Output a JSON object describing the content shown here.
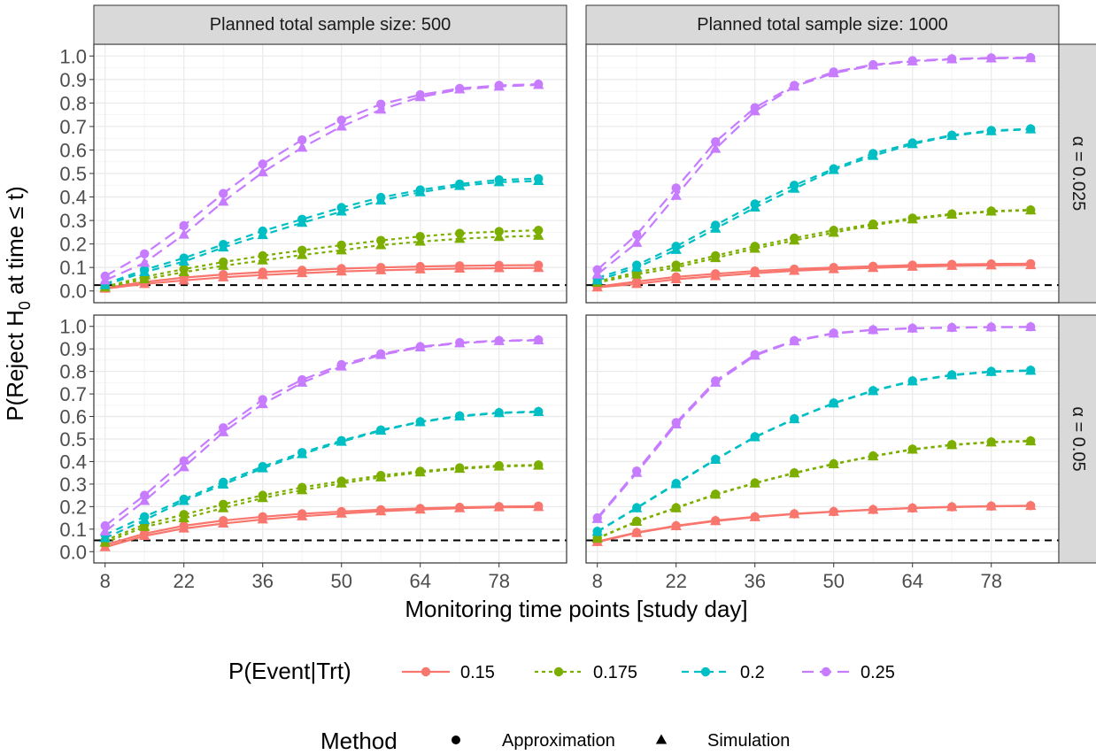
{
  "chart_data": {
    "type": "line",
    "xlabel": "Monitoring time points [study day]",
    "ylabel_prefix": "P(Reject H",
    "ylabel_sub": "0",
    "ylabel_suffix": " at time ≤ t)",
    "x_ticks": [
      8,
      22,
      36,
      50,
      64,
      78
    ],
    "y_ticks": [
      0.0,
      0.1,
      0.2,
      0.3,
      0.4,
      0.5,
      0.6,
      0.7,
      0.8,
      0.9,
      1.0
    ],
    "y_tick_labels": [
      "0.0",
      "0.1",
      "0.2",
      "0.3",
      "0.4",
      "0.5",
      "0.6",
      "0.7",
      "0.8",
      "0.9",
      "1.0"
    ],
    "xlim": [
      6,
      90
    ],
    "ylim": [
      -0.05,
      1.05
    ],
    "grid": true,
    "x": [
      8,
      15,
      22,
      29,
      36,
      43,
      50,
      57,
      64,
      71,
      78,
      85
    ],
    "col_facets": [
      "Planned total sample size: 500",
      "Planned total sample size: 1000"
    ],
    "row_facets": [
      "α = 0.025",
      "α = 0.05"
    ],
    "alpha_lines": [
      0.025,
      0.05
    ],
    "legend_event": {
      "title": "P(Event|Trt)",
      "entries": [
        {
          "label": "0.15",
          "color": "#F8766D",
          "dash": "solid"
        },
        {
          "label": "0.175",
          "color": "#7CAE00",
          "dash": "dotted"
        },
        {
          "label": "0.2",
          "color": "#00BFC4",
          "dash": "dashed"
        },
        {
          "label": "0.25",
          "color": "#C77CFF",
          "dash": "longdash"
        }
      ]
    },
    "legend_method": {
      "title": "Method",
      "entries": [
        {
          "label": "Approximation",
          "shape": "circle"
        },
        {
          "label": "Simulation",
          "shape": "triangle"
        }
      ]
    },
    "panels": [
      {
        "row": 0,
        "col": 0,
        "series": [
          {
            "event": "0.15",
            "method": "Approximation",
            "values": [
              0.013,
              0.038,
              0.057,
              0.07,
              0.08,
              0.088,
              0.095,
              0.1,
              0.104,
              0.107,
              0.109,
              0.11
            ]
          },
          {
            "event": "0.15",
            "method": "Simulation",
            "values": [
              0.01,
              0.03,
              0.045,
              0.058,
              0.068,
              0.076,
              0.083,
              0.088,
              0.092,
              0.095,
              0.097,
              0.098
            ]
          },
          {
            "event": "0.175",
            "method": "Approximation",
            "values": [
              0.018,
              0.06,
              0.093,
              0.123,
              0.15,
              0.173,
              0.195,
              0.215,
              0.232,
              0.245,
              0.253,
              0.258
            ]
          },
          {
            "event": "0.175",
            "method": "Simulation",
            "values": [
              0.015,
              0.05,
              0.08,
              0.107,
              0.13,
              0.153,
              0.173,
              0.195,
              0.21,
              0.222,
              0.23,
              0.235
            ]
          },
          {
            "event": "0.2",
            "method": "Approximation",
            "values": [
              0.03,
              0.09,
              0.14,
              0.198,
              0.255,
              0.305,
              0.355,
              0.398,
              0.43,
              0.455,
              0.473,
              0.478
            ]
          },
          {
            "event": "0.2",
            "method": "Simulation",
            "values": [
              0.025,
              0.08,
              0.125,
              0.185,
              0.238,
              0.29,
              0.338,
              0.385,
              0.42,
              0.447,
              0.463,
              0.468
            ]
          },
          {
            "event": "0.25",
            "method": "Approximation",
            "values": [
              0.063,
              0.158,
              0.278,
              0.415,
              0.54,
              0.643,
              0.727,
              0.795,
              0.835,
              0.862,
              0.875,
              0.88
            ]
          },
          {
            "event": "0.25",
            "method": "Simulation",
            "values": [
              0.045,
              0.12,
              0.24,
              0.38,
              0.505,
              0.61,
              0.7,
              0.772,
              0.825,
              0.858,
              0.87,
              0.877
            ]
          }
        ]
      },
      {
        "row": 0,
        "col": 1,
        "series": [
          {
            "event": "0.15",
            "method": "Approximation",
            "values": [
              0.018,
              0.04,
              0.06,
              0.073,
              0.085,
              0.093,
              0.1,
              0.105,
              0.11,
              0.113,
              0.115,
              0.116
            ]
          },
          {
            "event": "0.15",
            "method": "Simulation",
            "values": [
              0.015,
              0.03,
              0.05,
              0.063,
              0.076,
              0.086,
              0.093,
              0.098,
              0.103,
              0.107,
              0.109,
              0.11
            ]
          },
          {
            "event": "0.175",
            "method": "Approximation",
            "values": [
              0.04,
              0.08,
              0.11,
              0.15,
              0.19,
              0.225,
              0.258,
              0.285,
              0.31,
              0.328,
              0.34,
              0.345
            ]
          },
          {
            "event": "0.175",
            "method": "Simulation",
            "values": [
              0.035,
              0.07,
              0.1,
              0.14,
              0.18,
              0.215,
              0.248,
              0.28,
              0.305,
              0.325,
              0.338,
              0.343
            ]
          },
          {
            "event": "0.2",
            "method": "Approximation",
            "values": [
              0.055,
              0.11,
              0.19,
              0.28,
              0.37,
              0.45,
              0.52,
              0.585,
              0.63,
              0.663,
              0.683,
              0.69
            ]
          },
          {
            "event": "0.2",
            "method": "Simulation",
            "values": [
              0.045,
              0.1,
              0.175,
              0.265,
              0.355,
              0.435,
              0.515,
              0.575,
              0.625,
              0.66,
              0.68,
              0.688
            ]
          },
          {
            "event": "0.25",
            "method": "Approximation",
            "values": [
              0.09,
              0.24,
              0.438,
              0.635,
              0.78,
              0.875,
              0.932,
              0.963,
              0.98,
              0.988,
              0.992,
              0.993
            ]
          },
          {
            "event": "0.25",
            "method": "Simulation",
            "values": [
              0.07,
              0.205,
              0.405,
              0.605,
              0.765,
              0.87,
              0.927,
              0.96,
              0.977,
              0.986,
              0.99,
              0.991
            ]
          }
        ]
      },
      {
        "row": 1,
        "col": 0,
        "series": [
          {
            "event": "0.15",
            "method": "Approximation",
            "values": [
              0.03,
              0.08,
              0.115,
              0.138,
              0.155,
              0.168,
              0.178,
              0.186,
              0.192,
              0.197,
              0.2,
              0.202
            ]
          },
          {
            "event": "0.15",
            "method": "Simulation",
            "values": [
              0.02,
              0.07,
              0.103,
              0.125,
              0.143,
              0.157,
              0.169,
              0.179,
              0.187,
              0.193,
              0.197,
              0.198
            ]
          },
          {
            "event": "0.175",
            "method": "Approximation",
            "values": [
              0.05,
              0.12,
              0.165,
              0.21,
              0.25,
              0.285,
              0.313,
              0.338,
              0.357,
              0.372,
              0.382,
              0.385
            ]
          },
          {
            "event": "0.175",
            "method": "Simulation",
            "values": [
              0.04,
              0.11,
              0.148,
              0.193,
              0.238,
              0.273,
              0.303,
              0.33,
              0.352,
              0.368,
              0.378,
              0.382
            ]
          },
          {
            "event": "0.2",
            "method": "Approximation",
            "values": [
              0.075,
              0.155,
              0.233,
              0.308,
              0.378,
              0.44,
              0.493,
              0.54,
              0.577,
              0.603,
              0.617,
              0.622
            ]
          },
          {
            "event": "0.2",
            "method": "Simulation",
            "values": [
              0.06,
              0.14,
              0.225,
              0.298,
              0.37,
              0.433,
              0.488,
              0.537,
              0.575,
              0.6,
              0.615,
              0.62
            ]
          },
          {
            "event": "0.25",
            "method": "Approximation",
            "values": [
              0.115,
              0.25,
              0.403,
              0.55,
              0.675,
              0.763,
              0.83,
              0.878,
              0.91,
              0.928,
              0.937,
              0.94
            ]
          },
          {
            "event": "0.25",
            "method": "Simulation",
            "values": [
              0.09,
              0.225,
              0.375,
              0.53,
              0.655,
              0.75,
              0.822,
              0.873,
              0.907,
              0.925,
              0.935,
              0.938
            ]
          }
        ]
      },
      {
        "row": 1,
        "col": 1,
        "series": [
          {
            "event": "0.15",
            "method": "Approximation",
            "values": [
              0.045,
              0.085,
              0.115,
              0.138,
              0.155,
              0.168,
              0.178,
              0.187,
              0.194,
              0.199,
              0.202,
              0.204
            ]
          },
          {
            "event": "0.15",
            "method": "Simulation",
            "values": [
              0.043,
              0.083,
              0.113,
              0.136,
              0.153,
              0.167,
              0.177,
              0.186,
              0.193,
              0.198,
              0.201,
              0.203
            ]
          },
          {
            "event": "0.175",
            "method": "Approximation",
            "values": [
              0.06,
              0.135,
              0.195,
              0.255,
              0.305,
              0.35,
              0.39,
              0.425,
              0.455,
              0.475,
              0.487,
              0.492
            ]
          },
          {
            "event": "0.175",
            "method": "Simulation",
            "values": [
              0.058,
              0.133,
              0.193,
              0.253,
              0.303,
              0.348,
              0.388,
              0.423,
              0.453,
              0.473,
              0.485,
              0.49
            ]
          },
          {
            "event": "0.2",
            "method": "Approximation",
            "values": [
              0.09,
              0.195,
              0.303,
              0.41,
              0.51,
              0.59,
              0.66,
              0.715,
              0.758,
              0.785,
              0.8,
              0.805
            ]
          },
          {
            "event": "0.2",
            "method": "Simulation",
            "values": [
              0.088,
              0.193,
              0.3,
              0.408,
              0.508,
              0.588,
              0.658,
              0.713,
              0.756,
              0.783,
              0.798,
              0.803
            ]
          },
          {
            "event": "0.25",
            "method": "Approximation",
            "values": [
              0.15,
              0.358,
              0.573,
              0.758,
              0.875,
              0.937,
              0.97,
              0.985,
              0.992,
              0.995,
              0.997,
              0.998
            ]
          },
          {
            "event": "0.25",
            "method": "Simulation",
            "values": [
              0.145,
              0.35,
              0.565,
              0.75,
              0.87,
              0.934,
              0.968,
              0.984,
              0.991,
              0.994,
              0.996,
              0.997
            ]
          }
        ]
      }
    ]
  }
}
